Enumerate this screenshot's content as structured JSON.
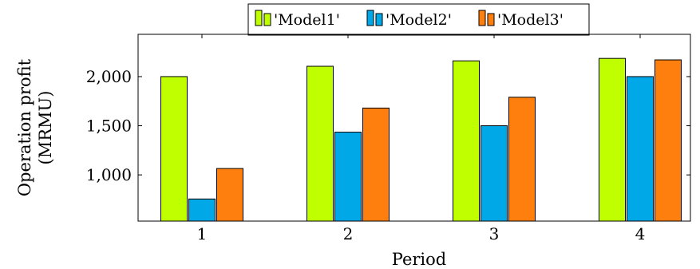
{
  "chart_data": {
    "type": "bar",
    "categories": [
      "1",
      "2",
      "3",
      "4"
    ],
    "series": [
      {
        "name": "'Model1'",
        "color": "#bfff00",
        "values": [
          2000,
          2105,
          2160,
          2185
        ]
      },
      {
        "name": "'Model2'",
        "color": "#00a8e8",
        "values": [
          755,
          1435,
          1500,
          2000
        ]
      },
      {
        "name": "'Model3'",
        "color": "#ff7f0e",
        "values": [
          1065,
          1680,
          1790,
          2170
        ]
      }
    ],
    "xlabel": "Period",
    "ylabel_lines": [
      "Operation profit",
      "(MRMU)"
    ],
    "ylim": [
      530,
      2430
    ],
    "yticks": [
      1000,
      1500,
      2000
    ],
    "ytick_labels": [
      "1,000",
      "1,500",
      "2,000"
    ],
    "legend_position": "top-center",
    "grid": false
  }
}
